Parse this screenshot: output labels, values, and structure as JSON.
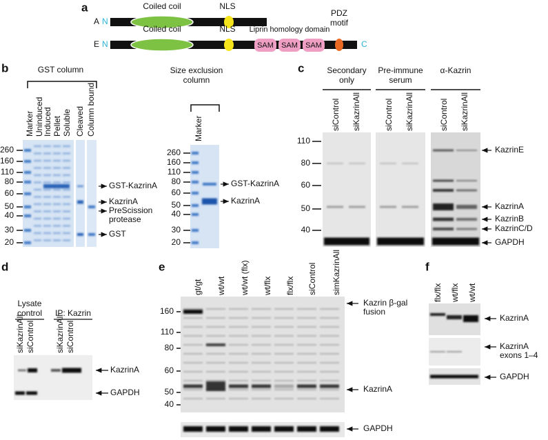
{
  "figure": {
    "a": {
      "label": "a",
      "row_a": {
        "name": "A",
        "n_term": "N",
        "coiled_coil": "Coiled coil",
        "nls": "NLS"
      },
      "row_e": {
        "name": "E",
        "n_term": "N",
        "c_term": "C",
        "coiled_coil": "Coiled coil",
        "nls": "NLS",
        "liprin": "Liprin homology domain",
        "sam": [
          "SAM",
          "SAM",
          "SAM"
        ],
        "pdz": [
          "PDZ",
          "motif"
        ]
      }
    },
    "b": {
      "label": "b",
      "gst_column": {
        "title": "GST column",
        "lanes": [
          "Marker",
          "Uninduced",
          "Induced",
          "Pellet",
          "Soluble",
          "Cleaved",
          "Column bound"
        ],
        "markers": [
          260,
          160,
          110,
          80,
          60,
          50,
          40,
          30,
          20
        ],
        "annotations": [
          "GST-KazrinA",
          "KazrinA",
          [
            "PreScission",
            "protease"
          ],
          "GST"
        ]
      },
      "size_exclusion": {
        "title": [
          "Size exclusion",
          "column"
        ],
        "lanes": [
          "Marker"
        ],
        "markers": [
          260,
          160,
          110,
          80,
          60,
          50,
          40,
          30,
          20
        ],
        "annotations": [
          "GST-KazrinA",
          "KazrinA"
        ]
      }
    },
    "c": {
      "label": "c",
      "groups": [
        {
          "title": [
            "Secondary",
            "only"
          ],
          "lanes": [
            "siControl",
            "siKazrinAll"
          ]
        },
        {
          "title": [
            "Pre-immune",
            "serum"
          ],
          "lanes": [
            "siControl",
            "siKazrinAll"
          ]
        },
        {
          "title": [
            "α-Kazrin"
          ],
          "lanes": [
            "siControl",
            "siKazrinAll"
          ]
        }
      ],
      "markers": [
        110,
        80,
        60,
        50,
        40
      ],
      "annotations": [
        "KazrinE",
        "KazrinA",
        "KazrinB",
        "KazrinC/D",
        "GAPDH"
      ]
    },
    "d": {
      "label": "d",
      "groups": [
        {
          "title": [
            "Lysate",
            "control"
          ],
          "lanes": [
            "siKazrinAll",
            "siControl"
          ]
        },
        {
          "title": [
            "IP: Kazrin"
          ],
          "lanes": [
            "siKazrinAll",
            "siControl"
          ]
        }
      ],
      "annotations": [
        "KazrinA",
        "GAPDH"
      ]
    },
    "e": {
      "label": "e",
      "lanes": [
        "gt/gt",
        "wt/wt",
        "wt/wt (flx)",
        "wt/flx",
        "flx/flx",
        "siControl",
        "simKazrinAll"
      ],
      "markers": [
        160,
        110,
        80,
        60,
        50,
        40
      ],
      "annotations": [
        [
          "Kazrin β-gal",
          "fusion"
        ],
        "KazrinA",
        "GAPDH"
      ]
    },
    "f": {
      "label": "f",
      "lanes": [
        "flx/flx",
        "wt/flx",
        "wt/wt"
      ],
      "annotations": [
        "KazrinA",
        [
          "KazrinA",
          "exons 1–4"
        ],
        "GAPDH"
      ]
    }
  }
}
